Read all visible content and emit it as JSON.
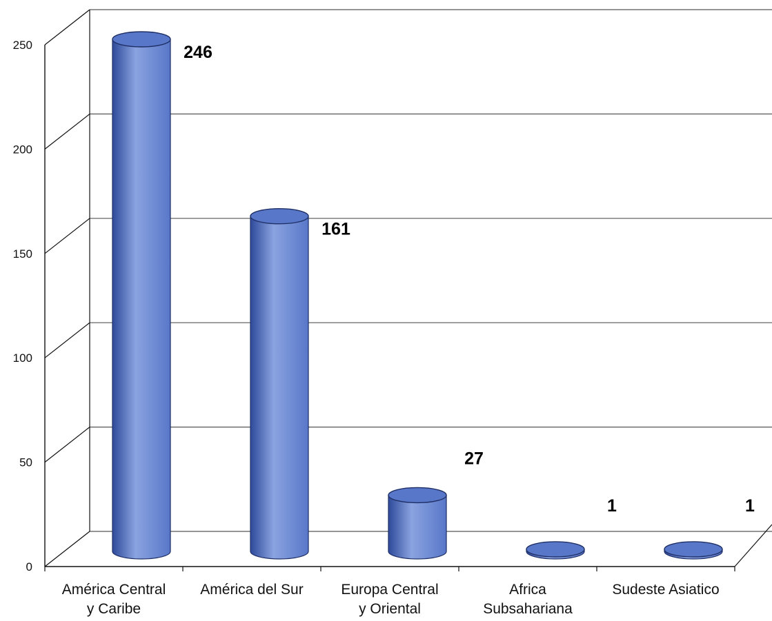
{
  "chart_data": {
    "type": "bar",
    "style": "3d-cylinder",
    "categories": [
      [
        "América Central",
        "y Caribe"
      ],
      [
        "América del Sur"
      ],
      [
        "Europa Central",
        "y Oriental"
      ],
      [
        "Africa",
        "Subsahariana"
      ],
      [
        "Sudeste Asiatico"
      ]
    ],
    "values": [
      246,
      161,
      27,
      1,
      1
    ],
    "data_labels": [
      "246",
      "161",
      "27",
      "1",
      "1"
    ],
    "ylim": [
      0,
      250
    ],
    "yticks": [
      0,
      50,
      100,
      150,
      200,
      250
    ],
    "grid": true,
    "legend": "none",
    "title": "",
    "xlabel": "",
    "ylabel": "",
    "colors": {
      "bar_fill": "#5877c8",
      "bar_dark": "#2e4a9a",
      "bar_light": "#8aa3e0",
      "gridline": "#555555",
      "axis": "#111111"
    }
  }
}
